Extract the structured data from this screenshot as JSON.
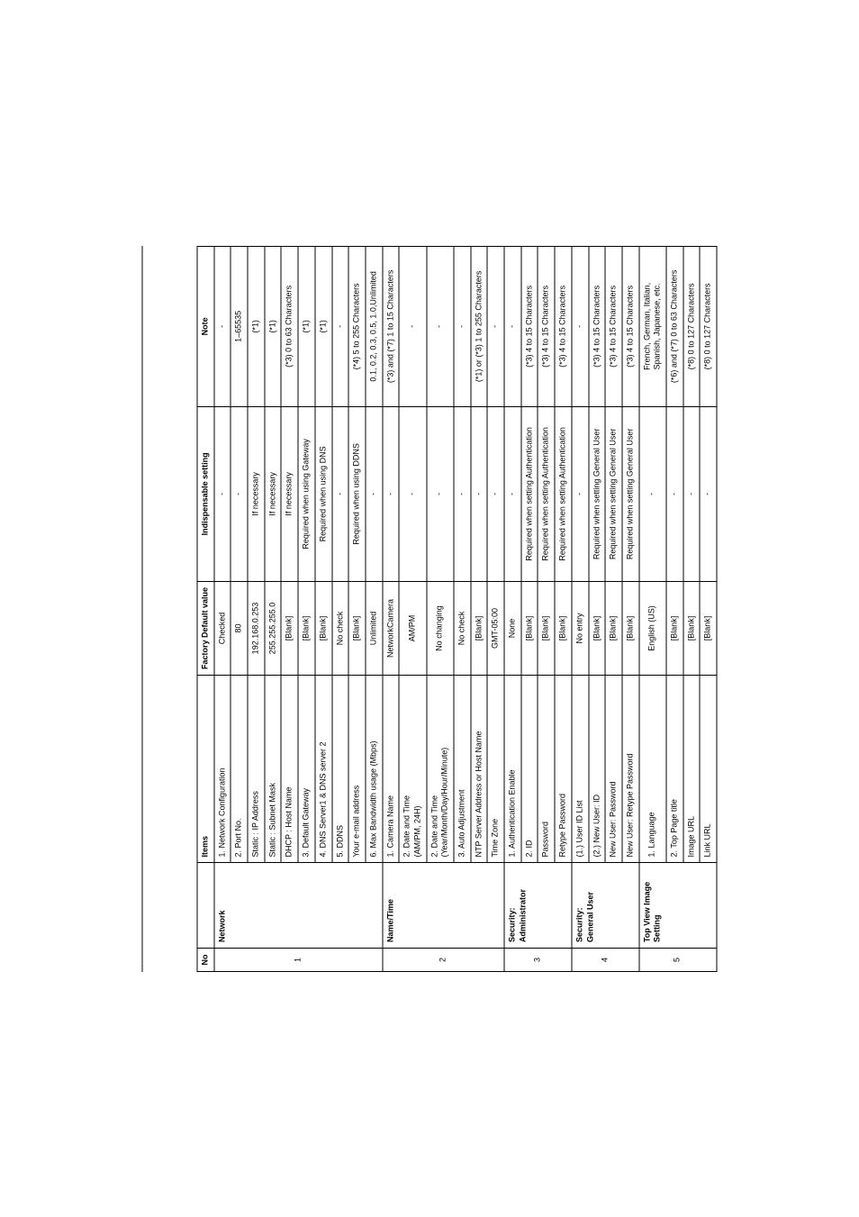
{
  "header": {
    "no": "No",
    "items": "Items",
    "factory_default": "Factory Default value",
    "indispensable": "Indispensable setting",
    "note": "Note"
  },
  "sections": [
    {
      "no": "1",
      "category": "Network",
      "rows": [
        {
          "item": "1.  Network Configuration",
          "def": "Checked",
          "ind": "-",
          "note": "-"
        },
        {
          "item": "2.  Port No.",
          "def": "80",
          "ind": "-",
          "note": "1–65535"
        },
        {
          "item": "    Static : IP Address",
          "def": "192.168.0.253",
          "ind": "If necessary",
          "note": "(*1)"
        },
        {
          "item": "    Static : Subnet Mask",
          "def": "255.255.255.0",
          "ind": "If necessary",
          "note": "(*1)"
        },
        {
          "item": "    DHCP : Host Name",
          "def": "[Blank]",
          "ind": "If necessary",
          "note": "(*3) 0 to 63 Characters"
        },
        {
          "item": "3.  Default Gateway",
          "def": "[Blank]",
          "ind": "Required when using Gateway",
          "note": "(*1)"
        },
        {
          "item": "4.  DNS Server1 & DNS server 2",
          "def": "[Blank]",
          "ind": "Required when using DNS",
          "note": "(*1)"
        },
        {
          "item": "5.  DDNS",
          "def": "No check",
          "ind": "-",
          "note": "-"
        },
        {
          "item": "    Your e-mail address",
          "def": "[Blank]",
          "ind": "Required when using DDNS",
          "note": "(*4) 5 to 255 Characters"
        },
        {
          "item": "6.  Max Bandwidth usage (Mbps)",
          "def": "Unlimited",
          "ind": "-",
          "note": "0.1, 0.2, 0.3, 0.5, 1.0,Unlimited"
        }
      ]
    },
    {
      "no": "2",
      "category": "Name/Time",
      "rows": [
        {
          "item": "1.  Camera Name",
          "def": "NetworkCamera",
          "ind": "-",
          "note": "(*3) and (*7) 1 to 15 Characters"
        },
        {
          "item": "2.  Date and Time\n(AM/PM, 24H)",
          "def": "AM/PM",
          "ind": "-",
          "note": "-"
        },
        {
          "item": "2.  Date and Time\n(Year/Month/Day/Hour/Minute)",
          "def": "No changing",
          "ind": "-",
          "note": "-"
        },
        {
          "item": "3.  Auto Adjustment",
          "def": "No check",
          "ind": "-",
          "note": "-"
        },
        {
          "item": "    NTP Server Address or Host Name",
          "def": "[Blank]",
          "ind": "-",
          "note": "(*1) or (*3) 1 to 255 Characters"
        },
        {
          "item": "    Time Zone",
          "def": "GMT-05:00",
          "ind": "-",
          "note": "-"
        }
      ]
    },
    {
      "no": "3",
      "category": "Security:\nAdministrator",
      "rows": [
        {
          "item": "1.  Authentication Enable",
          "def": "None",
          "ind": "-",
          "note": "-"
        },
        {
          "item": "2.  ID",
          "def": "[Blank]",
          "ind": "Required when setting Authentication",
          "note": "(*3) 4 to 15 Characters"
        },
        {
          "item": "    Password",
          "def": "[Blank]",
          "ind": "Required when setting Authentication",
          "note": "(*3) 4 to 15 Characters"
        },
        {
          "item": "    Retype Password",
          "def": "[Blank]",
          "ind": "Required when setting Authentication",
          "note": "(*3) 4 to 15 Characters"
        }
      ]
    },
    {
      "no": "4",
      "category": "Security:\nGeneral User",
      "rows": [
        {
          "item": "(1.) User ID List",
          "def": "No entry",
          "ind": "-",
          "note": "-"
        },
        {
          "item": "(2.) New User: ID",
          "def": "[Blank]",
          "ind": "Required when setting General User",
          "note": "(*3) 4 to 15 Characters"
        },
        {
          "item": "    New User: Password",
          "def": "[Blank]",
          "ind": "Required when setting General User",
          "note": "(*3) 4 to 15 Characters"
        },
        {
          "item": "    New User: Retype Password",
          "def": "[Blank]",
          "ind": "Required when setting General User",
          "note": "(*3) 4 to 15 Characters"
        }
      ]
    },
    {
      "no": "5",
      "category": "Top View Image\nSetting",
      "rows": [
        {
          "item": "1.  Language",
          "def": "English (US)",
          "ind": "-",
          "note": "French, German, Italian,\nSpanish, Japanese, etc."
        },
        {
          "item": "2.  Top Page title",
          "def": "[Blank]",
          "ind": "-",
          "note": "(*6) and (*7) 0 to 63 Characters"
        },
        {
          "item": "    Image URL",
          "def": "[Blank]",
          "ind": "-",
          "note": "(*8) 0 to 127 Characters"
        },
        {
          "item": "    Link URL",
          "def": "[Blank]",
          "ind": "-",
          "note": "(*8) 0 to 127 Characters"
        }
      ]
    }
  ]
}
